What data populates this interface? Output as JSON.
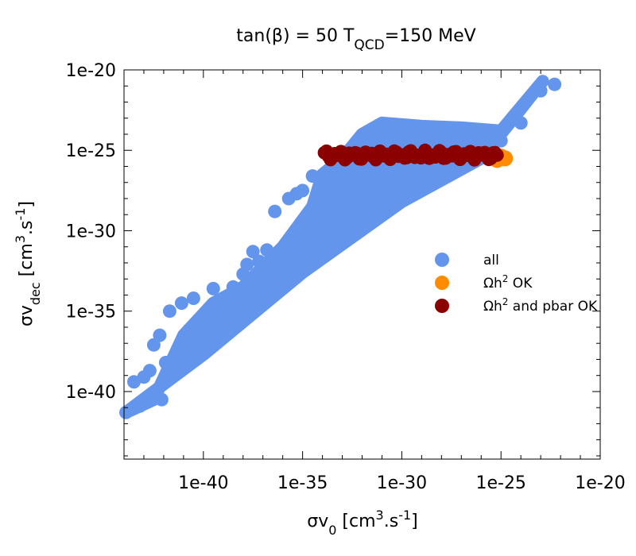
{
  "chart_data": {
    "type": "scatter",
    "title_main": "tan(β) = 50  T",
    "title_sub": "QCD",
    "title_tail": "=150 MeV",
    "xlabel": {
      "base": "σv",
      "sub": "0",
      "unit_pre": " [cm",
      "sup": "3",
      "unit_mid": ".s",
      "sup2": "-1",
      "unit_post": "]"
    },
    "ylabel": {
      "base": "σv",
      "sub": "dec",
      "unit_pre": " [cm",
      "sup": "3",
      "unit_mid": ".s",
      "sup2": "-1",
      "unit_post": "]"
    },
    "x_scale": "log10",
    "y_scale": "log10",
    "xlim_exp": [
      -44,
      -20
    ],
    "ylim_exp": [
      -44.2,
      -20
    ],
    "x_ticks_exp": [
      -40,
      -35,
      -30,
      -25,
      -20
    ],
    "x_tick_labels": [
      "1e-40",
      "1e-35",
      "1e-30",
      "1e-25",
      "1e-20"
    ],
    "y_ticks_exp": [
      -20,
      -25,
      -30,
      -35,
      -40
    ],
    "y_tick_labels": [
      "1e-20",
      "1e-25",
      "1e-30",
      "1e-35",
      "1e-40"
    ],
    "legend_position": "right",
    "series": [
      {
        "name": "all",
        "color": "#6495ed",
        "region_exp": [
          [
            -43.9,
            -41.3
          ],
          [
            -42.5,
            -40.5
          ],
          [
            -41,
            -36.5
          ],
          [
            -39.5,
            -34.5
          ],
          [
            -38,
            -33.5
          ],
          [
            -36,
            -31
          ],
          [
            -34.5,
            -28.5
          ],
          [
            -34,
            -26.5
          ],
          [
            -33,
            -25.5
          ],
          [
            -32,
            -24
          ],
          [
            -31,
            -23.3
          ],
          [
            -29,
            -23.5
          ],
          [
            -27,
            -23.6
          ],
          [
            -25,
            -23.8
          ],
          [
            -22.9,
            -20.7
          ],
          [
            -24.5,
            -23.2
          ],
          [
            -26,
            -25.5
          ],
          [
            -30,
            -28.2
          ],
          [
            -35,
            -32.6
          ],
          [
            -40,
            -37.7
          ],
          [
            -42.5,
            -40
          ]
        ],
        "points_exp": [
          [
            -43.9,
            -41.3
          ],
          [
            -43.5,
            -39.4
          ],
          [
            -43,
            -39.1
          ],
          [
            -42.7,
            -38.7
          ],
          [
            -42.5,
            -37.1
          ],
          [
            -42.2,
            -36.5
          ],
          [
            -41.7,
            -35
          ],
          [
            -41.1,
            -34.5
          ],
          [
            -40.5,
            -34.2
          ],
          [
            -39.5,
            -33.6
          ],
          [
            -38.5,
            -33.5
          ],
          [
            -38,
            -32.7
          ],
          [
            -37.8,
            -32.1
          ],
          [
            -37.5,
            -31.3
          ],
          [
            -36.4,
            -28.8
          ],
          [
            -36,
            -31.5
          ],
          [
            -35.7,
            -28
          ],
          [
            -35.3,
            -27.7
          ],
          [
            -35,
            -27.5
          ],
          [
            -34.5,
            -26.6
          ],
          [
            -33.5,
            -26.2
          ],
          [
            -33,
            -25.3
          ],
          [
            -32.3,
            -24.7
          ],
          [
            -31,
            -24
          ],
          [
            -30.2,
            -23.5
          ],
          [
            -29.5,
            -24.1
          ],
          [
            -28,
            -24.3
          ],
          [
            -26.5,
            -24.1
          ],
          [
            -25,
            -24.4
          ],
          [
            -24,
            -23.3
          ],
          [
            -23,
            -21.3
          ],
          [
            -22.3,
            -20.9
          ],
          [
            -41.9,
            -38.2
          ],
          [
            -39,
            -34.6
          ],
          [
            -37.2,
            -31.9
          ],
          [
            -36.8,
            -31.2
          ],
          [
            -43.2,
            -40.9
          ],
          [
            -42.1,
            -40.5
          ]
        ]
      },
      {
        "name": "Ωh² OK",
        "color": "#ff8c00",
        "points_exp": [
          [
            -24.8,
            -25.5
          ],
          [
            -25,
            -25.4
          ],
          [
            -25.2,
            -25.6
          ]
        ]
      },
      {
        "name": "Ωh² and pbar OK",
        "color": "#8b0000",
        "x_range_exp": [
          -33.9,
          -25.2
        ],
        "y_range_exp": [
          -25.6,
          -25.0
        ]
      }
    ],
    "legend": [
      {
        "label_base": "all",
        "label_sup": "",
        "label_tail": ""
      },
      {
        "label_base": "Ωh",
        "label_sup": "2",
        "label_tail": " OK"
      },
      {
        "label_base": "Ωh",
        "label_sup": "2",
        "label_tail": " and pbar OK"
      }
    ]
  }
}
